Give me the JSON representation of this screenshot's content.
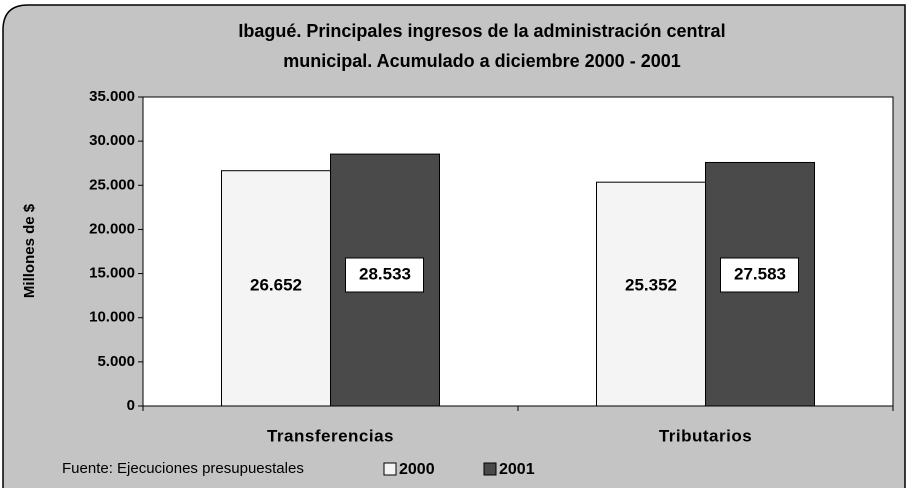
{
  "chart_data": {
    "type": "bar",
    "title": [
      "Ibagué. Principales ingresos de la administración central",
      "municipal. Acumulado a diciembre 2000 - 2001"
    ],
    "y_label": "Millones de $",
    "categories": [
      "Transferencias",
      "Tributarios"
    ],
    "series": [
      {
        "name": "2000",
        "color": "#f4f4f4",
        "values": [
          26652,
          25352
        ],
        "value_labels": [
          "26.652",
          "25.352"
        ]
      },
      {
        "name": "2001",
        "color": "#4a4a4a",
        "values": [
          28533,
          27583
        ],
        "value_labels": [
          "28.533",
          "27.583"
        ]
      }
    ],
    "ylim": [
      0,
      35000
    ],
    "yticks": [
      0,
      {
        "value": 5000,
        "label": "5.000"
      },
      {
        "value": 10000,
        "label": "10.000"
      },
      {
        "value": 15000,
        "label": "15.000"
      },
      {
        "value": 20000,
        "label": "20.000"
      },
      {
        "value": 25000,
        "label": "25.000"
      },
      {
        "value": 30000,
        "label": "30.000"
      },
      {
        "value": 35000,
        "label": "35.000"
      }
    ],
    "grid": false,
    "legend": "bottom",
    "source": "Fuente: Ejecuciones presupuestales"
  }
}
